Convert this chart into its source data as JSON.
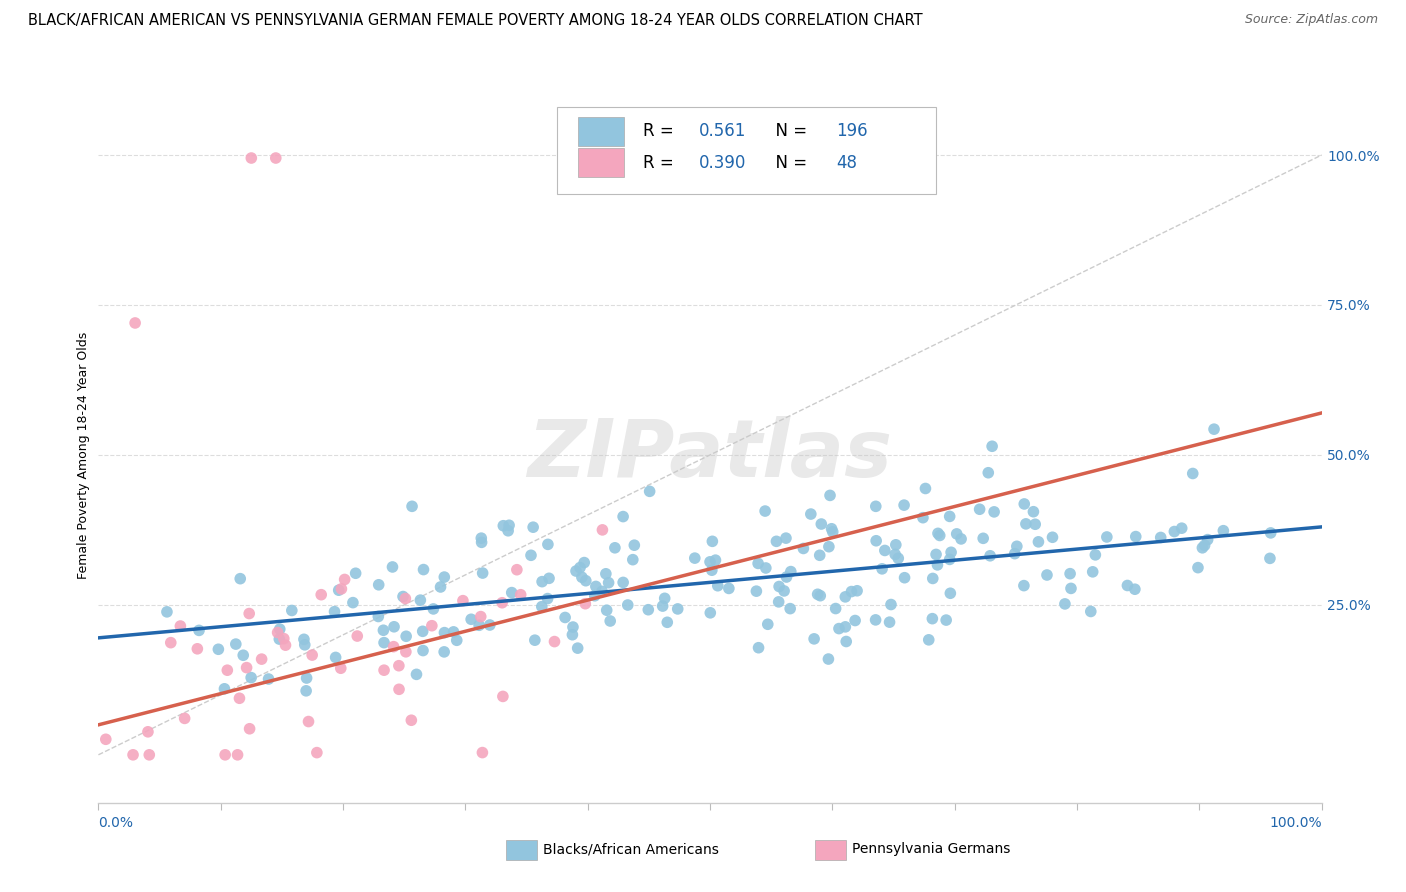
{
  "title": "BLACK/AFRICAN AMERICAN VS PENNSYLVANIA GERMAN FEMALE POVERTY AMONG 18-24 YEAR OLDS CORRELATION CHART",
  "source": "Source: ZipAtlas.com",
  "ylabel": "Female Poverty Among 18-24 Year Olds",
  "ytick_vals": [
    0.25,
    0.5,
    0.75,
    1.0
  ],
  "ytick_labels": [
    "25.0%",
    "50.0%",
    "75.0%",
    "100.0%"
  ],
  "legend_blue_R": "0.561",
  "legend_blue_N": "196",
  "legend_pink_R": "0.390",
  "legend_pink_N": "48",
  "legend_label_blue": "Blacks/African Americans",
  "legend_label_pink": "Pennsylvania Germans",
  "blue_color": "#92c5de",
  "pink_color": "#f4a6be",
  "blue_line_color": "#2166ac",
  "pink_line_color": "#d6604d",
  "ref_line_color": "#cccccc",
  "watermark": "ZIPatlas",
  "watermark_color": "#c8c8c8",
  "title_fontsize": 10.5,
  "source_fontsize": 9,
  "axis_label_fontsize": 9,
  "tick_fontsize": 10,
  "legend_fontsize": 12,
  "blue_intercept": 0.195,
  "blue_slope": 0.185,
  "pink_intercept": 0.05,
  "pink_slope": 0.52,
  "seed": 42,
  "N_blue": 196,
  "N_pink": 48
}
